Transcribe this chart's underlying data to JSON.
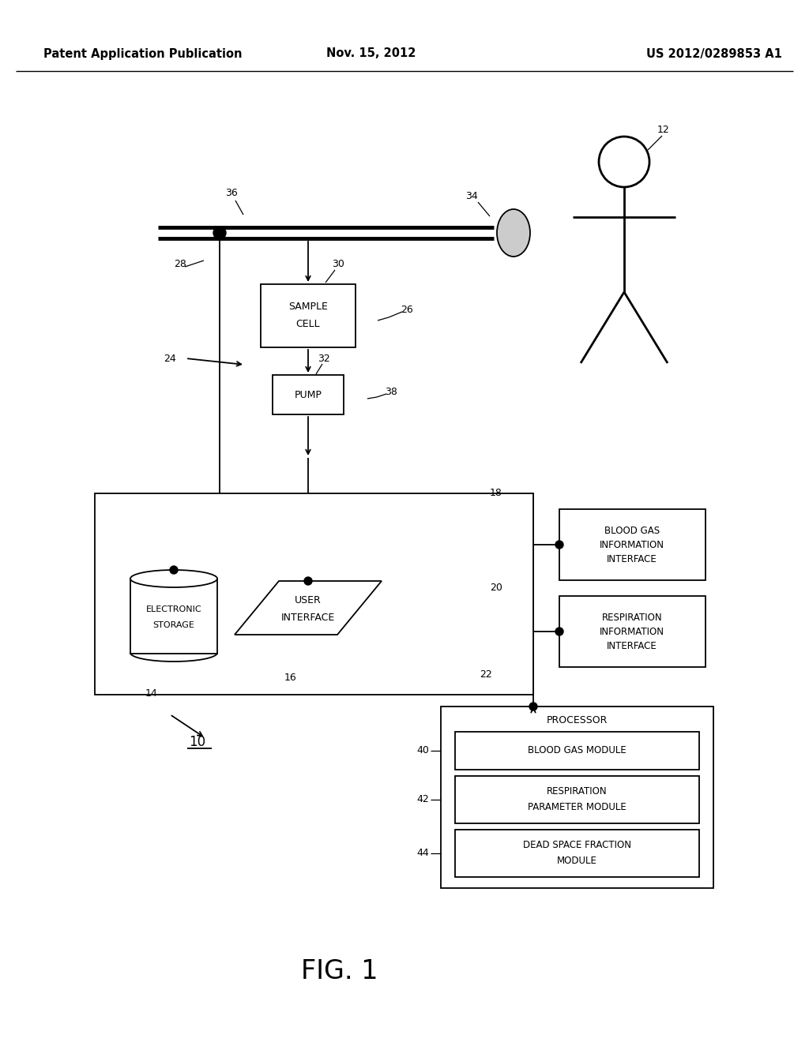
{
  "bg_color": "#ffffff",
  "header_left": "Patent Application Publication",
  "header_center": "Nov. 15, 2012",
  "header_right": "US 2012/0289853 A1",
  "fig_label": "FIG. 1"
}
